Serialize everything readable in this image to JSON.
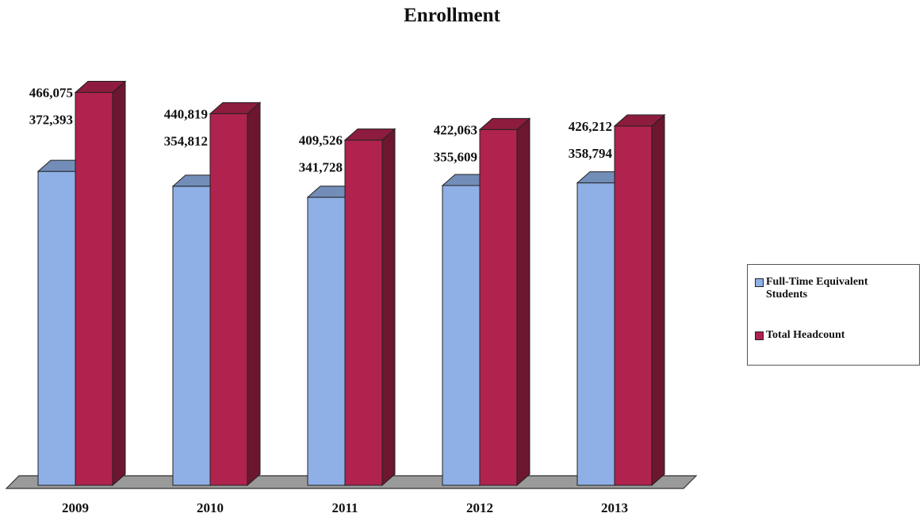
{
  "chart_data": {
    "type": "bar",
    "title": "Enrollment",
    "categories": [
      "2009",
      "2010",
      "2011",
      "2012",
      "2013"
    ],
    "series": [
      {
        "name": "Full-Time Equivalent Students",
        "color": "#8fb0e6",
        "values": [
          372393,
          354812,
          341728,
          355609,
          358794
        ],
        "labels": [
          "372,393",
          "354,812",
          "341,728",
          "355,609",
          "358,794"
        ]
      },
      {
        "name": "Total Headcount",
        "color": "#b0234e",
        "values": [
          466075,
          440819,
          409526,
          422063,
          426212
        ],
        "labels": [
          "466,075",
          "440,819",
          "409,526",
          "422,063",
          "426,212"
        ]
      }
    ],
    "ylim": [
      0,
      500000
    ],
    "three_d": true,
    "grid": false,
    "legend_position": "right"
  }
}
